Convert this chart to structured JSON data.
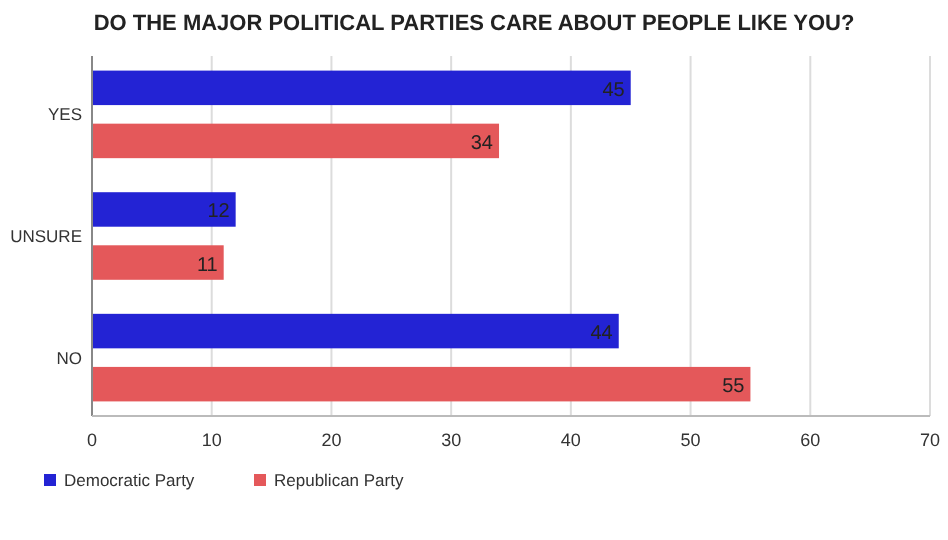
{
  "chart_data": {
    "type": "bar",
    "orientation": "horizontal",
    "title": "DO THE MAJOR POLITICAL PARTIES CARE ABOUT PEOPLE LIKE YOU?",
    "categories": [
      "YES",
      "UNSURE",
      "NO"
    ],
    "series": [
      {
        "name": "Democratic Party",
        "color": "#2323d4",
        "values": [
          45,
          12,
          44
        ]
      },
      {
        "name": "Republican Party",
        "color": "#e4585a",
        "values": [
          34,
          11,
          55
        ]
      }
    ],
    "xlim": [
      0,
      70
    ],
    "xticks": [
      0,
      10,
      20,
      30,
      40,
      50,
      60,
      70
    ],
    "grid": "x",
    "legend": "bottom",
    "data_labels": true
  }
}
